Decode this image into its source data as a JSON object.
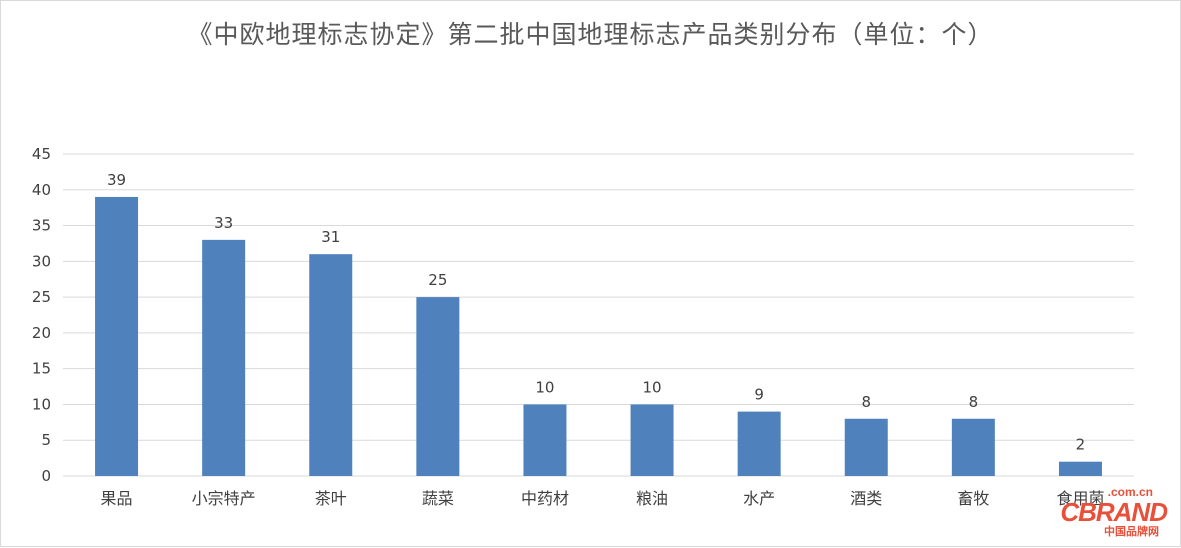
{
  "chart_data": {
    "type": "bar",
    "title": "《中欧地理标志协定》第二批中国地理标志产品类别分布（单位：个）",
    "categories": [
      "果品",
      "小宗特产",
      "茶叶",
      "蔬菜",
      "中药材",
      "粮油",
      "水产",
      "酒类",
      "畜牧",
      "食用菌"
    ],
    "values": [
      39,
      33,
      31,
      25,
      10,
      10,
      9,
      8,
      8,
      2
    ],
    "ylim": [
      0,
      45
    ],
    "yticks": [
      0,
      5,
      10,
      15,
      20,
      25,
      30,
      35,
      40,
      45
    ],
    "grid": true,
    "legend": "none",
    "bar_color": "#4f81bd",
    "grid_color": "#d9d9d9",
    "text_color": "#404040"
  },
  "watermark": {
    "domain": ".com.cn",
    "brand": "CBRAND",
    "subtitle": "中国品牌网"
  }
}
